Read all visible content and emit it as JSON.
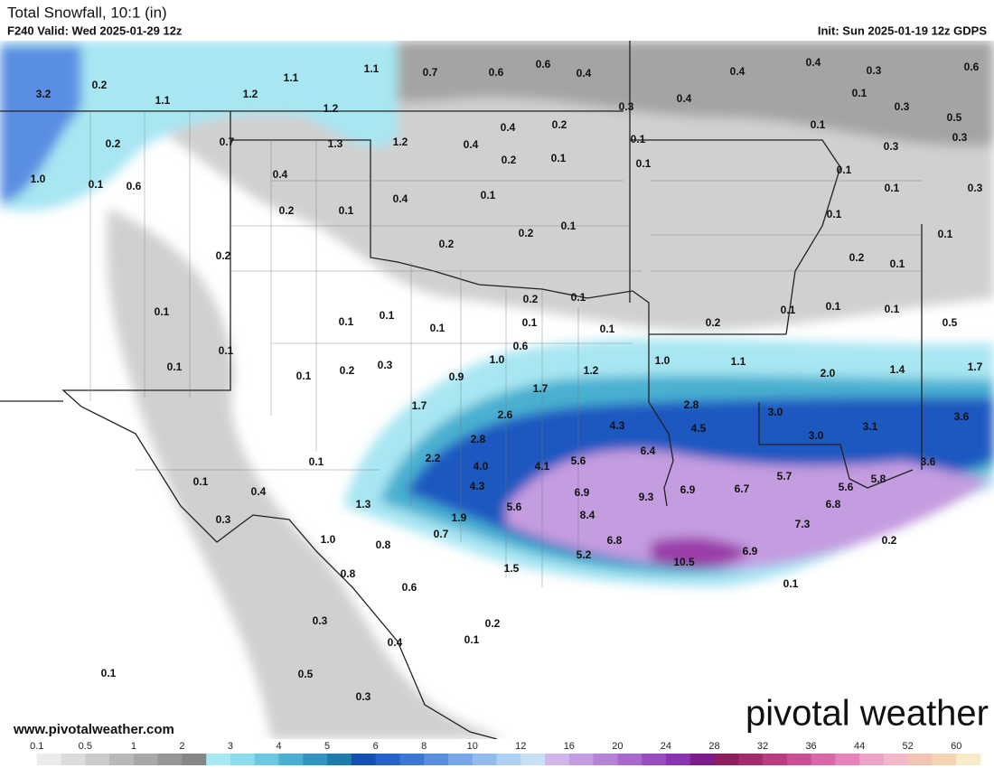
{
  "header": {
    "title": "Total Snowfall, 10:1 (in)",
    "valid": "F240 Valid: Wed 2025-01-29 12z",
    "init": "Init: Sun 2025-01-19 12z GDPS"
  },
  "map": {
    "labels": [
      "3.2",
      "0.2",
      "1.1",
      "1.2",
      "1.1",
      "1.1",
      "0.7",
      "0.6",
      "0.6",
      "0.4",
      "0.4",
      "0.4",
      "0.3",
      "0.6",
      "1.2",
      "0.3",
      "0.4",
      "0.1",
      "0.3",
      "0.5",
      "0.2",
      "0.7",
      "1.3",
      "1.2",
      "0.4",
      "0.4",
      "0.2",
      "0.1",
      "0.1",
      "0.3",
      "0.3",
      "1.0",
      "0.1",
      "0.6",
      "0.4",
      "0.2",
      "0.1",
      "0.1",
      "0.1",
      "0.1",
      "0.3",
      "0.2",
      "0.1",
      "0.4",
      "0.1",
      "0.1",
      "0.2",
      "0.2",
      "0.1",
      "0.2",
      "0.1",
      "0.1",
      "0.2",
      "0.1",
      "0.2",
      "0.1",
      "0.1",
      "0.1",
      "0.1",
      "0.1",
      "0.1",
      "0.1",
      "0.1",
      "0.1",
      "0.2",
      "0.5",
      "0.1",
      "0.6",
      "1.0",
      "1.0",
      "1.1",
      "0.3",
      "0.2",
      "0.1",
      "0.1",
      "0.9",
      "1.2",
      "2.0",
      "1.4",
      "1.7",
      "1.7",
      "1.7",
      "2.8",
      "3.0",
      "3.1",
      "3.6",
      "2.6",
      "4.3",
      "4.5",
      "3.0",
      "2.8",
      "2.2",
      "6.4",
      "5.6",
      "4.0",
      "4.1",
      "0.1",
      "3.6",
      "5.7",
      "5.6",
      "5.8",
      "6.7",
      "6.9",
      "4.3",
      "6.9",
      "9.3",
      "0.1",
      "0.4",
      "1.3",
      "5.6",
      "6.8",
      "1.9",
      "0.3",
      "8.4",
      "7.3",
      "0.7",
      "1.0",
      "0.8",
      "6.8",
      "0.2",
      "5.2",
      "10.5",
      "6.9",
      "1.5",
      "0.8",
      "0.1",
      "0.6",
      "0.3",
      "0.2",
      "0.4",
      "0.1",
      "0.5",
      "0.1",
      "0.3"
    ]
  },
  "footer": {
    "website": "www.pivotalweather.com",
    "logo": "pivotal weather"
  },
  "colorbar": {
    "ticks": [
      0.1,
      0.5,
      1,
      2,
      3,
      4,
      5,
      6,
      8,
      10,
      12,
      16,
      20,
      24,
      28,
      32,
      36,
      44,
      52,
      60
    ],
    "colors": [
      "#ffffff",
      "#ececec",
      "#dcdcdc",
      "#cccccc",
      "#b8b8b8",
      "#a8a8a8",
      "#969696",
      "#868686",
      "#a8e8f4",
      "#8cdcec",
      "#6ac8e0",
      "#48b0d0",
      "#2e96be",
      "#1c7cac",
      "#1450b4",
      "#2462cc",
      "#3c76d8",
      "#5a8ee2",
      "#76a6e8",
      "#92bcee",
      "#aed0f2",
      "#c8dff6",
      "#d2b6ea",
      "#c49ce0",
      "#b682d6",
      "#a868cc",
      "#984ec0",
      "#8a34b2",
      "#7c1c8c",
      "#8e1e5e",
      "#a42a6c",
      "#bc3a80",
      "#cc4c96",
      "#dc66aa",
      "#e684ba",
      "#eea2c8",
      "#f2b8c8",
      "#f2c4b4",
      "#f4d4b4",
      "#f8ecc8"
    ]
  }
}
